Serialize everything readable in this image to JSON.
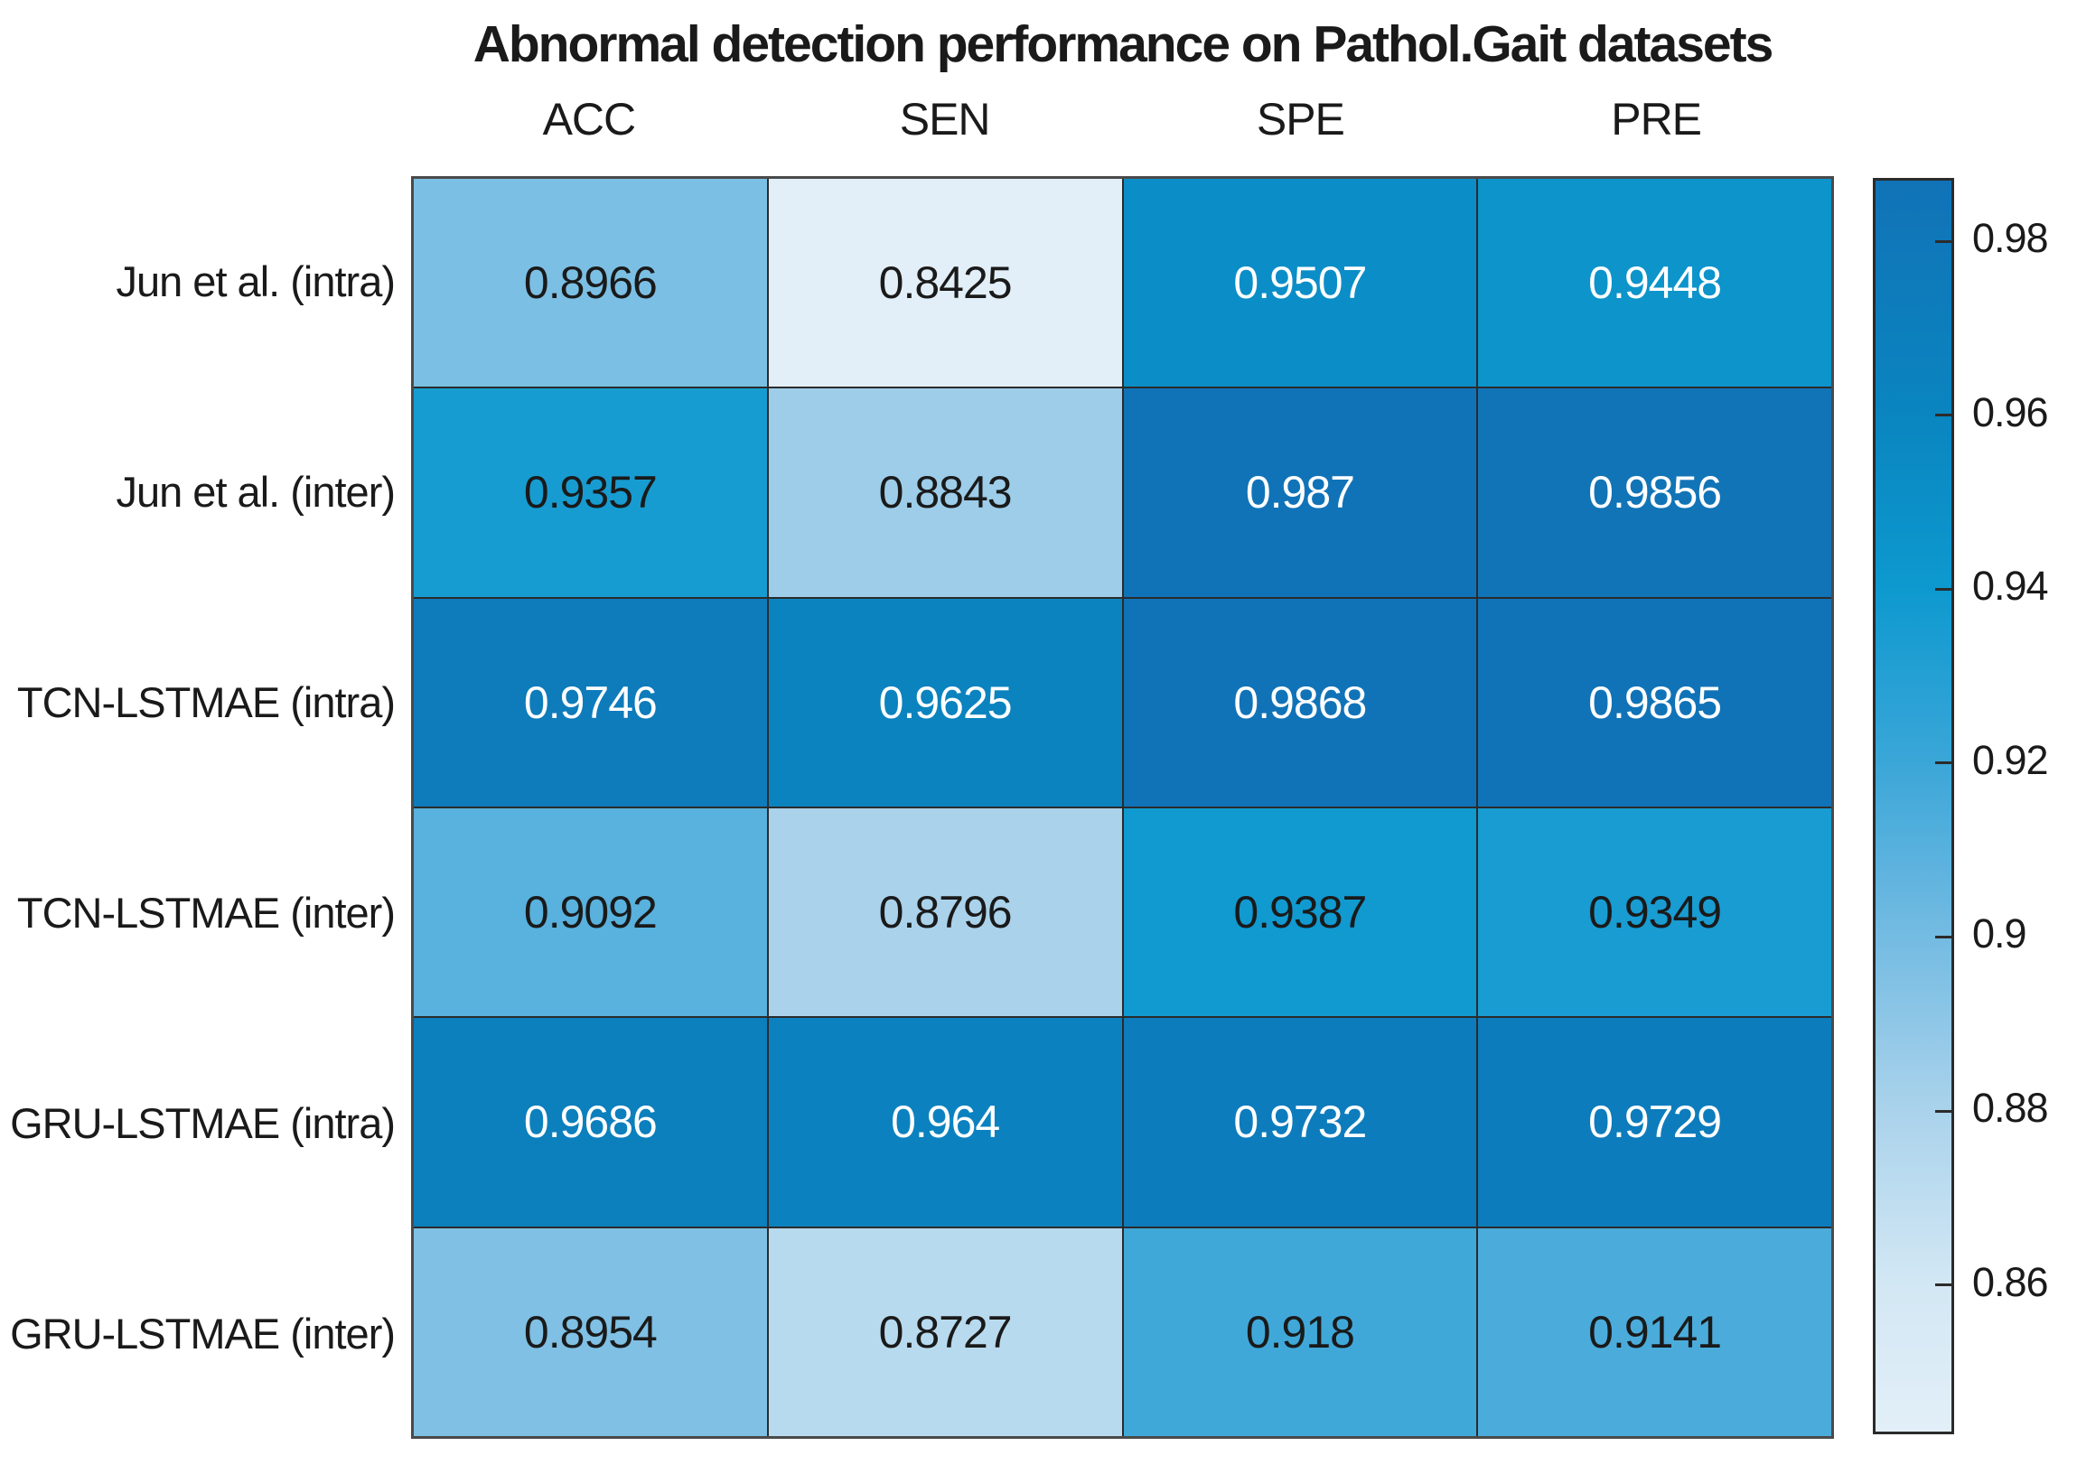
{
  "title": "Abnormal detection performance on Pathol.Gait datasets",
  "chart_data": {
    "type": "heatmap",
    "title": "Abnormal detection performance on Pathol.Gait datasets",
    "x_labels": [
      "ACC",
      "SEN",
      "SPE",
      "PRE"
    ],
    "y_labels": [
      "Jun et al. (intra)",
      "Jun et al. (inter)",
      "TCN-LSTMAE (intra)",
      "TCN-LSTMAE (inter)",
      "GRU-LSTMAE (intra)",
      "GRU-LSTMAE (inter)"
    ],
    "values": [
      [
        0.8966,
        0.8425,
        0.9507,
        0.9448
      ],
      [
        0.9357,
        0.8843,
        0.987,
        0.9856
      ],
      [
        0.9746,
        0.9625,
        0.9868,
        0.9865
      ],
      [
        0.9092,
        0.8796,
        0.9387,
        0.9349
      ],
      [
        0.9686,
        0.964,
        0.9732,
        0.9729
      ],
      [
        0.8954,
        0.8727,
        0.918,
        0.9141
      ]
    ],
    "cell_labels": [
      [
        "0.8966",
        "0.8425",
        "0.9507",
        "0.9448"
      ],
      [
        "0.9357",
        "0.8843",
        "0.987",
        "0.9856"
      ],
      [
        "0.9746",
        "0.9625",
        "0.9868",
        "0.9865"
      ],
      [
        "0.9092",
        "0.8796",
        "0.9387",
        "0.9349"
      ],
      [
        "0.9686",
        "0.964",
        "0.9732",
        "0.9729"
      ],
      [
        "0.8954",
        "0.8727",
        "0.918",
        "0.9141"
      ]
    ],
    "color_range": [
      0.8425,
      0.987
    ],
    "legend_position": "right-colorbar",
    "grid": true
  },
  "colorbar": {
    "tick_labels": [
      "0.98",
      "0.96",
      "0.94",
      "0.92",
      "0.9",
      "0.88",
      "0.86"
    ],
    "tick_values": [
      0.98,
      0.96,
      0.94,
      0.92,
      0.9,
      0.88,
      0.86
    ],
    "min": 0.8425,
    "max": 0.987,
    "stops": [
      {
        "v": 0.8425,
        "c": "#E2EFF8"
      },
      {
        "v": 0.86,
        "c": "#D2E7F4"
      },
      {
        "v": 0.88,
        "c": "#A9D2EB"
      },
      {
        "v": 0.9,
        "c": "#73BBE2"
      },
      {
        "v": 0.92,
        "c": "#3AA6D8"
      },
      {
        "v": 0.94,
        "c": "#0D99CF"
      },
      {
        "v": 0.96,
        "c": "#0A85C0"
      },
      {
        "v": 0.987,
        "c": "#1173B7"
      }
    ]
  },
  "colors": {
    "cell_text_dark": "#1a1a1a",
    "cell_text_light": "#ffffff",
    "grid_line": "#2b2b2b",
    "outer_border": "#4a4a4a",
    "background": "#ffffff",
    "white_text_threshold": 0.69
  }
}
